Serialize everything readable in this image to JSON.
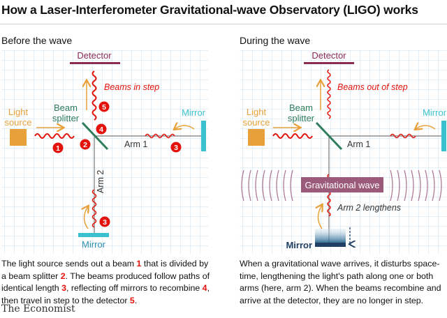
{
  "title": "How a Laser-Interferometer Gravitational-wave Observatory (LIGO) works",
  "colors": {
    "red": "#e3120b",
    "orange": "#e8a13a",
    "teal": "#3bc0cf",
    "maroon": "#8b2b52",
    "green": "#2e7d5b",
    "grid": "#c9dff0",
    "wave_band": "#9c5a7a"
  },
  "left_panel": {
    "heading": "Before the wave",
    "detector": "Detector",
    "beams_note": "Beams in step",
    "light_source": [
      "Light",
      "source"
    ],
    "beam_splitter": [
      "Beam",
      "splitter"
    ],
    "mirror_right": "Mirror",
    "mirror_bottom": "Mirror",
    "arm1": "Arm 1",
    "arm2": "Arm 2",
    "badges": [
      "1",
      "2",
      "3",
      "3",
      "4",
      "5"
    ],
    "caption": {
      "p1": "The light source sends out a beam ",
      "n1": "1",
      "p2": " that is divided by a beam splitter ",
      "n2": "2",
      "p3": ". The beams produced follow paths of identical length ",
      "n3": "3",
      "p4": ", reflecting off mirrors to recombine ",
      "n4": "4",
      "p5": ", then travel in step to the detector ",
      "n5": "5",
      "p6": "."
    }
  },
  "right_panel": {
    "heading": "During the wave",
    "detector": "Detector",
    "beams_note": "Beams out of step",
    "light_source": [
      "Light",
      "source"
    ],
    "beam_splitter": [
      "Beam",
      "splitter"
    ],
    "mirror_right": "Mirror",
    "mirror_bottom": "Mirror",
    "arm1": "Arm 1",
    "grav_wave": "Gravitational wave",
    "arm2_note": "Arm 2 lengthens",
    "caption": "When a gravitational wave arrives, it disturbs space-time, lengthening the light's path along one or both arms (here, arm 2). When the beams recombine and arrive at the detector, they are no longer in step."
  },
  "brand": "The Economist"
}
